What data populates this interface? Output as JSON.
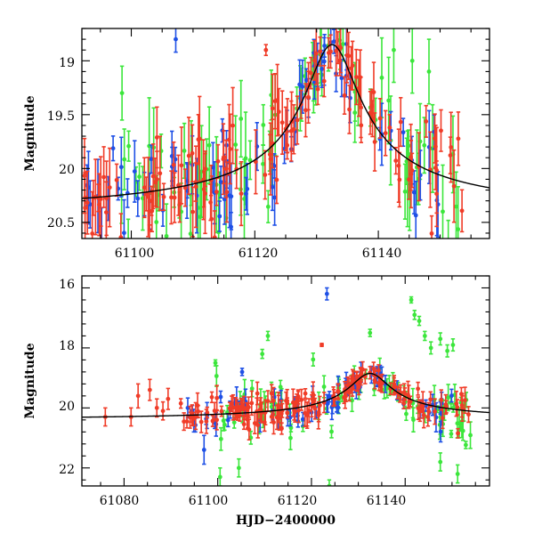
{
  "colors": {
    "red": "#f03c28",
    "blue": "#1e50e6",
    "green": "#3ce63c",
    "curve": "#000000",
    "frame": "#000000"
  },
  "chart_data": [
    {
      "type": "scatter",
      "panel": "top",
      "title": "",
      "xlabel": "",
      "ylabel": "Magnitude",
      "xlim": [
        61092,
        61158
      ],
      "ylim": [
        20.65,
        18.7
      ],
      "y_inverted": true,
      "xticks": [
        61100,
        61120,
        61140
      ],
      "xtick_labels": [
        "61100",
        "61120",
        "61140"
      ],
      "yticks": [
        19,
        19.5,
        20,
        20.5
      ],
      "ytick_labels": [
        "19",
        "19.5",
        "20",
        "20.5"
      ],
      "model_curve": {
        "baseline": 20.45,
        "peak_mag": 18.85,
        "t0": 61132.5,
        "tE": 6.5
      },
      "series": [
        {
          "name": "red",
          "color": "red",
          "t_start": 61092,
          "t_end": 61154,
          "count": 140,
          "err_min": 0.12,
          "err_max": 0.4,
          "scatter": 0.22
        },
        {
          "name": "blue",
          "color": "blue",
          "t_start": 61092,
          "t_end": 61150,
          "count": 75,
          "err_min": 0.1,
          "err_max": 0.35,
          "scatter": 0.25
        },
        {
          "name": "green",
          "color": "green",
          "t_start": 61098,
          "t_end": 61154,
          "count": 80,
          "err_min": 0.12,
          "err_max": 0.45,
          "scatter": 0.3
        }
      ],
      "outliers": [
        {
          "series": "blue",
          "t": 61107.2,
          "mag": 18.8,
          "err": 0.12
        },
        {
          "series": "red",
          "t": 61121.8,
          "mag": 18.9,
          "err": 0.05
        },
        {
          "series": "green",
          "t": 61098.5,
          "mag": 19.3,
          "err": 0.25
        },
        {
          "series": "green",
          "t": 61142.5,
          "mag": 18.9,
          "err": 0.3
        },
        {
          "series": "green",
          "t": 61145.5,
          "mag": 19.0,
          "err": 0.3
        },
        {
          "series": "green",
          "t": 61148.2,
          "mag": 19.1,
          "err": 0.3
        }
      ]
    },
    {
      "type": "scatter",
      "panel": "bottom",
      "title": "",
      "xlabel": "HJD−2400000",
      "ylabel": "Magnitude",
      "xlim": [
        61071,
        61158
      ],
      "ylim": [
        22.6,
        15.6
      ],
      "y_inverted": true,
      "xticks": [
        61080,
        61100,
        61120,
        61140
      ],
      "xtick_labels": [
        "61080",
        "61100",
        "61120",
        "61140"
      ],
      "yticks": [
        16,
        18,
        20,
        22
      ],
      "ytick_labels": [
        "16",
        "18",
        "20",
        "22"
      ],
      "model_curve": {
        "baseline": 20.42,
        "peak_mag": 18.85,
        "t0": 61132.5,
        "tE": 6.5
      },
      "series": [
        {
          "name": "red",
          "color": "red",
          "t_start": 61092,
          "t_end": 61154,
          "count": 160,
          "err_min": 0.15,
          "err_max": 0.45,
          "scatter": 0.25
        },
        {
          "name": "blue",
          "color": "blue",
          "t_start": 61092,
          "t_end": 61150,
          "count": 70,
          "err_min": 0.15,
          "err_max": 0.5,
          "scatter": 0.35
        },
        {
          "name": "green",
          "color": "green",
          "t_start": 61098,
          "t_end": 61154,
          "count": 90,
          "err_min": 0.1,
          "err_max": 0.6,
          "scatter": 0.6
        }
      ],
      "red_early": [
        {
          "t": 61076.0,
          "mag": 20.3,
          "err": 0.3
        },
        {
          "t": 61081.5,
          "mag": 20.3,
          "err": 0.3
        },
        {
          "t": 61083.0,
          "mag": 19.6,
          "err": 0.4
        },
        {
          "t": 61085.5,
          "mag": 19.4,
          "err": 0.35
        },
        {
          "t": 61087.0,
          "mag": 20.0,
          "err": 0.3
        },
        {
          "t": 61088.3,
          "mag": 20.1,
          "err": 0.3
        },
        {
          "t": 61089.4,
          "mag": 19.7,
          "err": 0.35
        }
      ],
      "outliers": [
        {
          "series": "blue",
          "t": 61123.3,
          "mag": 16.2,
          "err": 0.2
        },
        {
          "series": "green",
          "t": 61110.7,
          "mag": 17.6,
          "err": 0.15
        },
        {
          "series": "green",
          "t": 61109.5,
          "mag": 18.2,
          "err": 0.15
        },
        {
          "series": "green",
          "t": 61099.5,
          "mag": 18.5,
          "err": 0.1
        },
        {
          "series": "red",
          "t": 61122.2,
          "mag": 17.9,
          "err": 0.05
        },
        {
          "series": "blue",
          "t": 61105.2,
          "mag": 18.8,
          "err": 0.12
        },
        {
          "series": "green",
          "t": 61132.5,
          "mag": 17.5,
          "err": 0.12
        },
        {
          "series": "green",
          "t": 61141.3,
          "mag": 16.4,
          "err": 0.1
        },
        {
          "series": "green",
          "t": 61142.0,
          "mag": 16.9,
          "err": 0.15
        },
        {
          "series": "green",
          "t": 61143.0,
          "mag": 17.1,
          "err": 0.15
        },
        {
          "series": "green",
          "t": 61144.2,
          "mag": 17.6,
          "err": 0.15
        },
        {
          "series": "green",
          "t": 61145.5,
          "mag": 18.0,
          "err": 0.2
        },
        {
          "series": "green",
          "t": 61147.5,
          "mag": 17.7,
          "err": 0.2
        },
        {
          "series": "green",
          "t": 61149.0,
          "mag": 18.1,
          "err": 0.2
        },
        {
          "series": "green",
          "t": 61150.2,
          "mag": 17.9,
          "err": 0.2
        },
        {
          "series": "green",
          "t": 61100.5,
          "mag": 22.3,
          "err": 0.3
        },
        {
          "series": "green",
          "t": 61104.5,
          "mag": 22.0,
          "err": 0.3
        },
        {
          "series": "green",
          "t": 61123.8,
          "mag": 22.6,
          "err": 0.2
        },
        {
          "series": "green",
          "t": 61147.5,
          "mag": 21.8,
          "err": 0.3
        },
        {
          "series": "green",
          "t": 61151.2,
          "mag": 22.2,
          "err": 0.3
        }
      ]
    }
  ]
}
